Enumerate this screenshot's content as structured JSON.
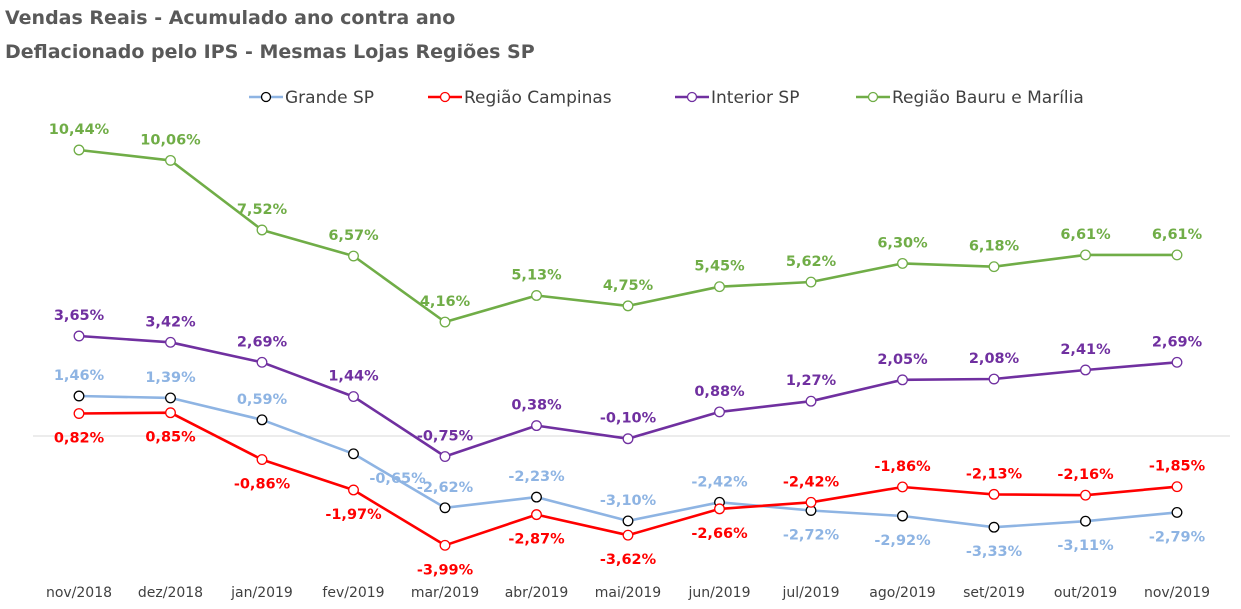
{
  "chart_data": {
    "type": "line",
    "title_lines": [
      "Vendas Reais - Acumulado ano contra ano",
      "Deflacionado pelo IPS - Mesmas Lojas  Regiões SP"
    ],
    "xlabel": "",
    "ylabel": "",
    "categories": [
      "nov/2018",
      "dez/2018",
      "jan/2019",
      "fev/2019",
      "mar/2019",
      "abr/2019",
      "mai/2019",
      "jun/2019",
      "jul/2019",
      "ago/2019",
      "set/2019",
      "out/2019",
      "nov/2019"
    ],
    "ylim": [
      -0.05,
      0.115
    ],
    "grid": false,
    "legend_position": "top",
    "series": [
      {
        "name": "Grande SP",
        "color": "#8eb4e3",
        "marker_edge": "#000000",
        "values": [
          0.0146,
          0.0139,
          0.0059,
          -0.0065,
          -0.0262,
          -0.0223,
          -0.031,
          -0.0242,
          -0.0272,
          -0.0292,
          -0.0333,
          -0.0311,
          -0.0279
        ],
        "labels": [
          "1,46%",
          "1,39%",
          "0,59%",
          "-0,65%",
          "-2,62%",
          "-2,23%",
          "-3,10%",
          "-2,42%",
          "-2,72%",
          "-2,92%",
          "-3,33%",
          "-3,11%",
          "-2,79%"
        ]
      },
      {
        "name": "Região Campinas",
        "color": "#ff0000",
        "marker_edge": "#ff0000",
        "values": [
          0.0082,
          0.0085,
          -0.0086,
          -0.0197,
          -0.0399,
          -0.0287,
          -0.0362,
          -0.0266,
          -0.0242,
          -0.0186,
          -0.0213,
          -0.0216,
          -0.0185
        ],
        "labels": [
          "0,82%",
          "0,85%",
          "-0,86%",
          "-1,97%",
          "-3,99%",
          "-2,87%",
          "-3,62%",
          "-2,66%",
          "-2,42%",
          "-1,86%",
          "-2,13%",
          "-2,16%",
          "-1,85%"
        ]
      },
      {
        "name": "Interior SP",
        "color": "#7030a0",
        "marker_edge": "#7030a0",
        "values": [
          0.0365,
          0.0342,
          0.0269,
          0.0144,
          -0.0075,
          0.0038,
          -0.001,
          0.0088,
          0.0127,
          0.0205,
          0.0208,
          0.0241,
          0.0269
        ],
        "labels": [
          "3,65%",
          "3,42%",
          "2,69%",
          "1,44%",
          "-0,75%",
          "0,38%",
          "-0,10%",
          "0,88%",
          "1,27%",
          "2,05%",
          "2,08%",
          "2,41%",
          "2,69%"
        ]
      },
      {
        "name": "Região Bauru e Marília",
        "color": "#70ad47",
        "marker_edge": "#70ad47",
        "values": [
          0.1044,
          0.1006,
          0.0752,
          0.0657,
          0.0416,
          0.0513,
          0.0475,
          0.0545,
          0.0562,
          0.063,
          0.0618,
          0.0661,
          0.0661
        ],
        "labels": [
          "10,44%",
          "10,06%",
          "7,52%",
          "6,57%",
          "4,16%",
          "5,13%",
          "4,75%",
          "5,45%",
          "5,62%",
          "6,30%",
          "6,18%",
          "6,61%",
          "6,61%"
        ]
      }
    ]
  }
}
